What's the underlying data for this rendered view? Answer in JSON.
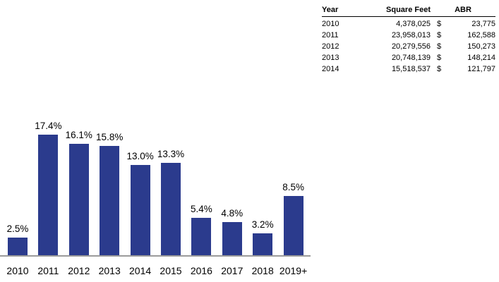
{
  "chart_data": [
    {
      "type": "bar",
      "categories": [
        "2010",
        "2011",
        "2012",
        "2013",
        "2014",
        "2015",
        "2016",
        "2017",
        "2018",
        "2019+"
      ],
      "values": [
        2.5,
        17.4,
        16.1,
        15.8,
        13.0,
        13.3,
        5.4,
        4.8,
        3.2,
        8.5
      ],
      "labels": [
        "2.5%",
        "17.4%",
        "16.1%",
        "15.8%",
        "13.0%",
        "13.3%",
        "5.4%",
        "4.8%",
        "3.2%",
        "8.5%"
      ],
      "title": "",
      "xlabel": "",
      "ylabel": "",
      "ylim": [
        0,
        20
      ],
      "grid": false,
      "legend": "none",
      "bar_color": "#2b3b8d",
      "axis_line_color": "#9b9b9b",
      "label_color": "#000000"
    },
    {
      "type": "table",
      "columns": [
        "Year",
        "Square Feet",
        "ABR"
      ],
      "currency_symbol": "$",
      "rows": [
        [
          "2010",
          "4,378,025",
          "23,775"
        ],
        [
          "2011",
          "23,958,013",
          "162,588"
        ],
        [
          "2012",
          "20,279,556",
          "150,273"
        ],
        [
          "2013",
          "20,748,139",
          "148,214"
        ],
        [
          "2014",
          "15,518,537",
          "121,797"
        ]
      ]
    }
  ]
}
